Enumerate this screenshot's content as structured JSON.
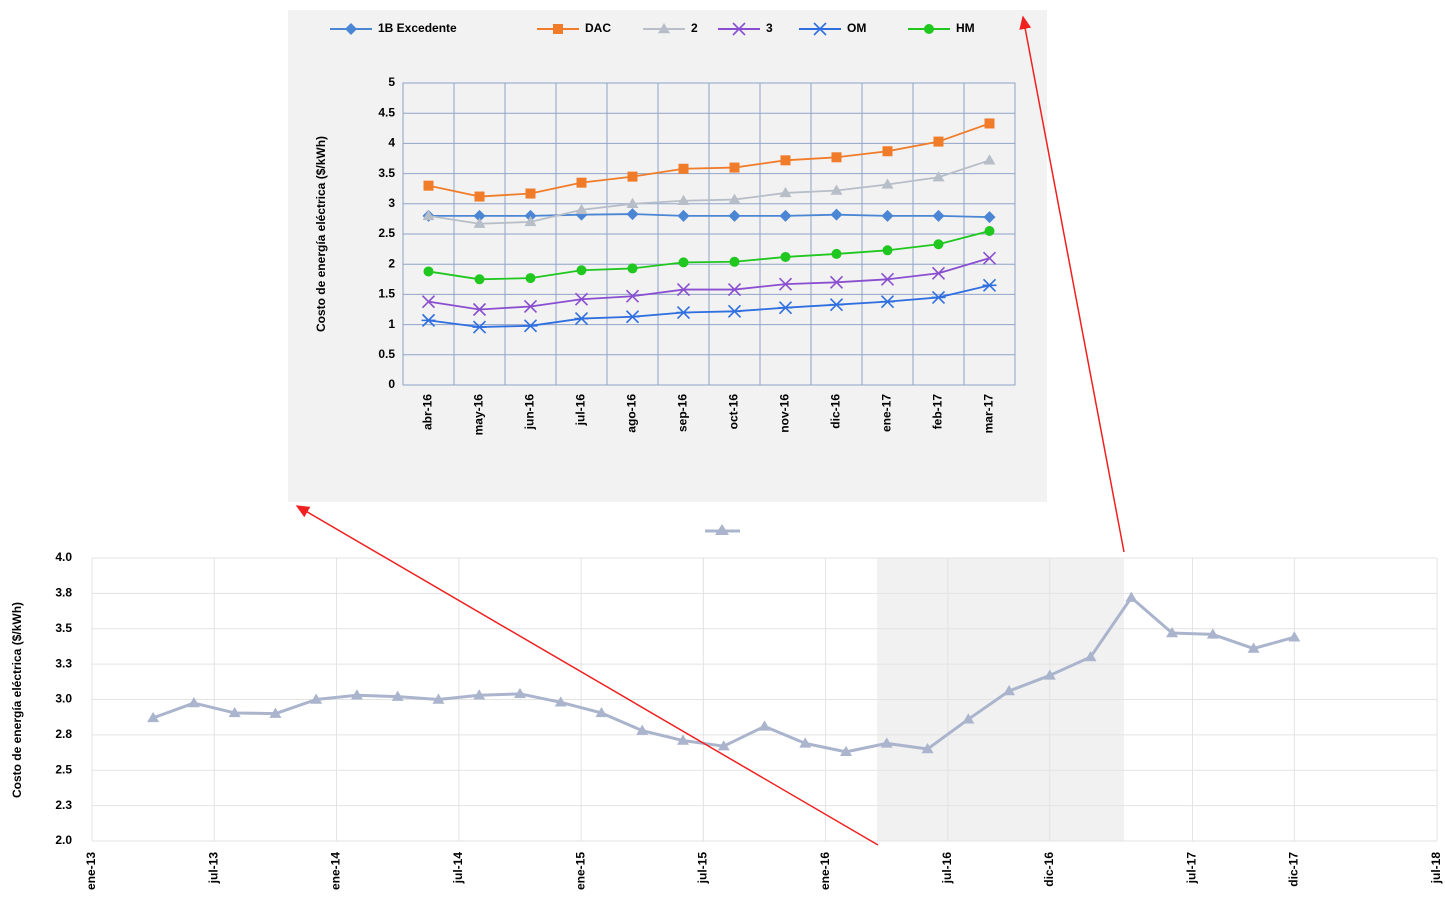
{
  "chart_data": [
    {
      "type": "line",
      "ylabel": "Costo de energía eléctrica ($/kWh)",
      "categories": [
        "abr-16",
        "may-16",
        "jun-16",
        "jul-16",
        "ago-16",
        "sep-16",
        "oct-16",
        "nov-16",
        "dic-16",
        "ene-17",
        "feb-17",
        "mar-17"
      ],
      "series": [
        {
          "name": "1B Excedente",
          "color": "#4a86d4",
          "marker": "diamond",
          "values": [
            2.8,
            2.8,
            2.8,
            2.82,
            2.83,
            2.8,
            2.8,
            2.8,
            2.82,
            2.8,
            2.8,
            2.78
          ]
        },
        {
          "name": "DAC",
          "color": "#f07c2a",
          "marker": "square",
          "values": [
            3.3,
            3.12,
            3.17,
            3.35,
            3.45,
            3.58,
            3.6,
            3.72,
            3.77,
            3.87,
            4.03,
            4.33
          ]
        },
        {
          "name": "2",
          "color": "#b7bec8",
          "marker": "triangle",
          "values": [
            2.8,
            2.67,
            2.7,
            2.9,
            3.0,
            3.05,
            3.07,
            3.18,
            3.22,
            3.32,
            3.44,
            3.72
          ]
        },
        {
          "name": "3",
          "color": "#8a4fd0",
          "marker": "x",
          "values": [
            1.38,
            1.25,
            1.3,
            1.42,
            1.47,
            1.58,
            1.58,
            1.67,
            1.7,
            1.75,
            1.85,
            2.1
          ]
        },
        {
          "name": "OM",
          "color": "#2f6fe0",
          "marker": "asterisk",
          "values": [
            1.07,
            0.96,
            0.98,
            1.1,
            1.13,
            1.2,
            1.22,
            1.28,
            1.33,
            1.38,
            1.45,
            1.65
          ]
        },
        {
          "name": "HM",
          "color": "#1fc71f",
          "marker": "circle",
          "values": [
            1.88,
            1.75,
            1.77,
            1.9,
            1.93,
            2.03,
            2.04,
            2.12,
            2.17,
            2.23,
            2.33,
            2.55
          ]
        }
      ],
      "ylim": [
        0,
        5
      ],
      "yticks": [
        0,
        0.5,
        1,
        1.5,
        2,
        2.5,
        3,
        3.5,
        4,
        4.5,
        5
      ],
      "grid": true,
      "legend": "top"
    },
    {
      "type": "line",
      "ylabel": "Costo de energía eléctrica ($/kWh)",
      "x": [
        "abr-13",
        "jun-13",
        "ago-13",
        "oct-13",
        "dic-13",
        "feb-14",
        "abr-14",
        "jun-14",
        "ago-14",
        "oct-14",
        "dic-14",
        "feb-15",
        "abr-15",
        "jun-15",
        "ago-15",
        "oct-15",
        "dic-15",
        "feb-16",
        "abr-16",
        "jun-16",
        "ago-16",
        "oct-16",
        "dic-16",
        "feb-17",
        "abr-17",
        "jun-17",
        "ago-17",
        "oct-17",
        "dic-17"
      ],
      "series": [
        {
          "color": "#aab4cc",
          "marker": "triangle",
          "values": [
            2.87,
            2.975,
            2.905,
            2.9,
            3.0,
            3.03,
            3.02,
            3.0,
            3.03,
            3.04,
            2.98,
            2.905,
            2.78,
            2.71,
            2.67,
            2.81,
            2.69,
            2.63,
            2.69,
            2.65,
            2.86,
            3.06,
            3.17,
            3.3,
            3.72,
            3.47,
            3.46,
            3.36,
            3.44
          ]
        }
      ],
      "xlim": [
        "ene-13",
        "jul-18"
      ],
      "xticks": [
        "ene-13",
        "jul-13",
        "ene-14",
        "jul-14",
        "ene-15",
        "jul-15",
        "ene-16",
        "jul-16",
        "dic-16",
        "jul-17",
        "dic-17",
        "jul-18"
      ],
      "ylim": [
        2.0,
        4.0
      ],
      "yticks": [
        {
          "value": 2.0,
          "label": "2.0"
        },
        {
          "value": 2.25,
          "label": "2.3"
        },
        {
          "value": 2.5,
          "label": "2.5"
        },
        {
          "value": 2.75,
          "label": "2.8"
        },
        {
          "value": 3.0,
          "label": "3.0"
        },
        {
          "value": 3.25,
          "label": "3.3"
        },
        {
          "value": 3.5,
          "label": "3.5"
        },
        {
          "value": 3.75,
          "label": "3.8"
        },
        {
          "value": 4.0,
          "label": "4.0"
        }
      ],
      "grid": true
    }
  ]
}
